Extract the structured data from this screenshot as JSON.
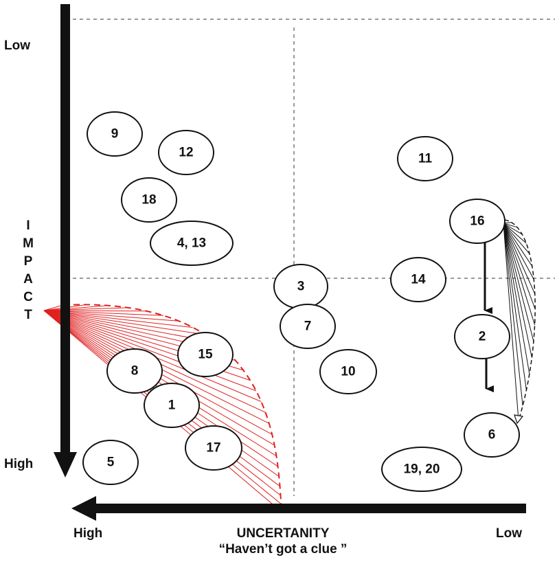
{
  "labels": {
    "impact_low": "Low",
    "impact_high": "High",
    "impact_title": "IMPACT",
    "uncertainty_high": "High",
    "uncertainty_low": "Low",
    "uncertainty_title": "UNCERTANITY",
    "uncertainty_subtitle": "“Haven’t got a clue ”"
  },
  "colors": {
    "axis": "#111111",
    "gridline": "#9a9a9a",
    "highlight_fan": "#e02020",
    "movement_fan": "#111111",
    "node_stroke": "#111111"
  },
  "nodes": [
    {
      "id": "node-9",
      "label": "9"
    },
    {
      "id": "node-12",
      "label": "12"
    },
    {
      "id": "node-18",
      "label": "18"
    },
    {
      "id": "node-4-13",
      "label": "4, 13"
    },
    {
      "id": "node-3",
      "label": "3"
    },
    {
      "id": "node-7",
      "label": "7"
    },
    {
      "id": "node-10",
      "label": "10"
    },
    {
      "id": "node-11",
      "label": "11"
    },
    {
      "id": "node-16",
      "label": "16"
    },
    {
      "id": "node-14",
      "label": "14"
    },
    {
      "id": "node-2",
      "label": "2"
    },
    {
      "id": "node-6",
      "label": "6"
    },
    {
      "id": "node-19-20",
      "label": "19, 20"
    },
    {
      "id": "node-15",
      "label": "15"
    },
    {
      "id": "node-8",
      "label": "8"
    },
    {
      "id": "node-1",
      "label": "1"
    },
    {
      "id": "node-17",
      "label": "17"
    },
    {
      "id": "node-5",
      "label": "5"
    }
  ]
}
